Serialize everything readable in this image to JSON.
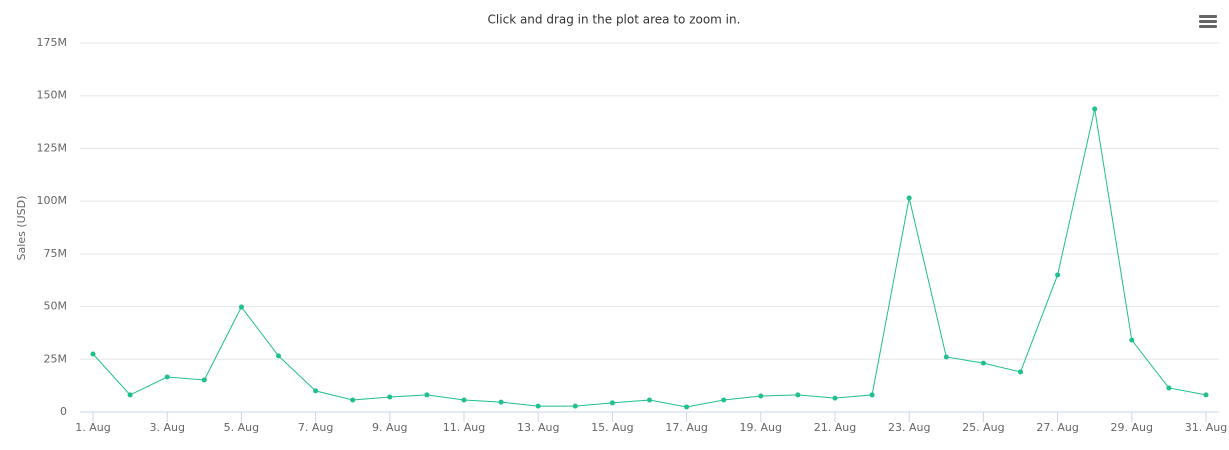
{
  "chart_data": {
    "type": "line",
    "subtitle": "Click and drag in the plot area to zoom in.",
    "y_label": "Sales (USD)",
    "categories": [
      "1. Aug",
      null,
      "3. Aug",
      null,
      "5. Aug",
      null,
      "7. Aug",
      null,
      "9. Aug",
      null,
      "11. Aug",
      null,
      "13. Aug",
      null,
      "15. Aug",
      null,
      "17. Aug",
      null,
      "19. Aug",
      null,
      "21. Aug",
      null,
      "23. Aug",
      null,
      "25. Aug",
      null,
      "27. Aug",
      null,
      "29. Aug",
      null,
      "31. Aug"
    ],
    "series": [
      {
        "name": "Sales",
        "color": "#1fbf8f",
        "values": [
          27500000,
          8100000,
          16600000,
          15200000,
          49800000,
          26600000,
          10000000,
          5700000,
          7100000,
          8100000,
          5700000,
          4700000,
          2800000,
          2800000,
          4300000,
          5700000,
          2400000,
          5700000,
          7600000,
          8100000,
          6600000,
          8100000,
          101500000,
          26100000,
          23200000,
          19000000,
          65000000,
          143700000,
          34100000,
          11400000,
          8100000
        ]
      }
    ],
    "ylim": [
      0,
      175000000
    ],
    "yticks": [
      0,
      {
        "value": 25000000,
        "label": "25M"
      },
      {
        "value": 50000000,
        "label": "50M"
      },
      {
        "value": 75000000,
        "label": "75M"
      },
      {
        "value": 100000000,
        "label": "100M"
      },
      {
        "value": 125000000,
        "label": "125M"
      },
      {
        "value": 150000000,
        "label": "150M"
      },
      {
        "value": 175000000,
        "label": "175M"
      }
    ],
    "grid": true
  }
}
